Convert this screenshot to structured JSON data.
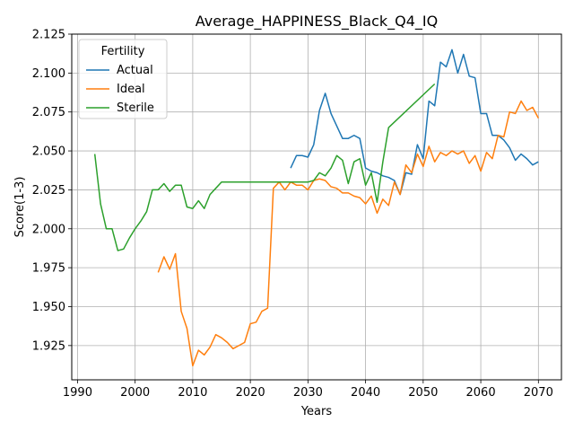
{
  "chart_data": {
    "type": "line",
    "title": "Average_HAPPINESS_Black_Q4_IQ",
    "xlabel": "Years",
    "ylabel": "Score(1-3)",
    "xlim": [
      1989,
      2074
    ],
    "ylim": [
      1.903,
      2.125
    ],
    "xticks": [
      1990,
      2000,
      2010,
      2020,
      2030,
      2040,
      2050,
      2060,
      2070
    ],
    "yticks": [
      1.925,
      1.95,
      1.975,
      2.0,
      2.025,
      2.05,
      2.075,
      2.1,
      2.125
    ],
    "grid": true,
    "legend": {
      "title": "Fertility",
      "placement": "top-left",
      "entries": [
        "Actual",
        "Ideal",
        "Sterile"
      ]
    },
    "series": [
      {
        "name": "Actual",
        "color": "#1f77b4",
        "points": [
          [
            2027,
            2.039
          ],
          [
            2028,
            2.047
          ],
          [
            2029,
            2.047
          ],
          [
            2030,
            2.046
          ],
          [
            2031,
            2.054
          ],
          [
            2032,
            2.076
          ],
          [
            2033,
            2.087
          ],
          [
            2034,
            2.074
          ],
          [
            2035,
            2.066
          ],
          [
            2036,
            2.058
          ],
          [
            2037,
            2.058
          ],
          [
            2038,
            2.06
          ],
          [
            2039,
            2.058
          ],
          [
            2040,
            2.039
          ],
          [
            2041,
            2.037
          ],
          [
            2042,
            2.036
          ],
          [
            2043,
            2.034
          ],
          [
            2044,
            2.033
          ],
          [
            2045,
            2.031
          ],
          [
            2046,
            2.022
          ],
          [
            2047,
            2.036
          ],
          [
            2048,
            2.035
          ],
          [
            2049,
            2.054
          ],
          [
            2050,
            2.045
          ],
          [
            2051,
            2.082
          ],
          [
            2052,
            2.079
          ],
          [
            2053,
            2.107
          ],
          [
            2054,
            2.104
          ],
          [
            2055,
            2.115
          ],
          [
            2056,
            2.1
          ],
          [
            2057,
            2.112
          ],
          [
            2058,
            2.098
          ],
          [
            2059,
            2.097
          ],
          [
            2060,
            2.074
          ],
          [
            2061,
            2.074
          ],
          [
            2062,
            2.06
          ],
          [
            2063,
            2.06
          ],
          [
            2064,
            2.057
          ],
          [
            2065,
            2.052
          ],
          [
            2066,
            2.044
          ],
          [
            2067,
            2.048
          ],
          [
            2068,
            2.045
          ],
          [
            2069,
            2.041
          ],
          [
            2070,
            2.043
          ]
        ]
      },
      {
        "name": "Ideal",
        "color": "#ff7f0e",
        "points": [
          [
            2004,
            1.972
          ],
          [
            2005,
            1.982
          ],
          [
            2006,
            1.974
          ],
          [
            2007,
            1.984
          ],
          [
            2008,
            1.947
          ],
          [
            2009,
            1.936
          ],
          [
            2010,
            1.912
          ],
          [
            2011,
            1.922
          ],
          [
            2012,
            1.919
          ],
          [
            2013,
            1.924
          ],
          [
            2014,
            1.932
          ],
          [
            2015,
            1.93
          ],
          [
            2016,
            1.927
          ],
          [
            2017,
            1.923
          ],
          [
            2018,
            1.925
          ],
          [
            2019,
            1.927
          ],
          [
            2020,
            1.939
          ],
          [
            2021,
            1.94
          ],
          [
            2022,
            1.947
          ],
          [
            2023,
            1.949
          ],
          [
            2024,
            2.026
          ],
          [
            2025,
            2.03
          ],
          [
            2026,
            2.025
          ],
          [
            2027,
            2.03
          ],
          [
            2028,
            2.028
          ],
          [
            2029,
            2.028
          ],
          [
            2030,
            2.025
          ],
          [
            2031,
            2.031
          ],
          [
            2032,
            2.032
          ],
          [
            2033,
            2.031
          ],
          [
            2034,
            2.027
          ],
          [
            2035,
            2.026
          ],
          [
            2036,
            2.023
          ],
          [
            2037,
            2.023
          ],
          [
            2038,
            2.021
          ],
          [
            2039,
            2.02
          ],
          [
            2040,
            2.016
          ],
          [
            2041,
            2.021
          ],
          [
            2042,
            2.01
          ],
          [
            2043,
            2.019
          ],
          [
            2044,
            2.015
          ],
          [
            2045,
            2.03
          ],
          [
            2046,
            2.022
          ],
          [
            2047,
            2.041
          ],
          [
            2048,
            2.036
          ],
          [
            2049,
            2.048
          ],
          [
            2050,
            2.04
          ],
          [
            2051,
            2.053
          ],
          [
            2052,
            2.043
          ],
          [
            2053,
            2.049
          ],
          [
            2054,
            2.047
          ],
          [
            2055,
            2.05
          ],
          [
            2056,
            2.048
          ],
          [
            2057,
            2.05
          ],
          [
            2058,
            2.042
          ],
          [
            2059,
            2.047
          ],
          [
            2060,
            2.037
          ],
          [
            2061,
            2.049
          ],
          [
            2062,
            2.045
          ],
          [
            2063,
            2.06
          ],
          [
            2064,
            2.059
          ],
          [
            2065,
            2.075
          ],
          [
            2066,
            2.074
          ],
          [
            2067,
            2.082
          ],
          [
            2068,
            2.076
          ],
          [
            2069,
            2.078
          ],
          [
            2070,
            2.071
          ]
        ]
      },
      {
        "name": "Sterile",
        "color": "#2ca02c",
        "points": [
          [
            1993,
            2.048
          ],
          [
            1994,
            2.016
          ],
          [
            1995,
            2.0
          ],
          [
            1996,
            2.0
          ],
          [
            1997,
            1.986
          ],
          [
            1998,
            1.987
          ],
          [
            1999,
            1.994
          ],
          [
            2000,
            2.0
          ],
          [
            2001,
            2.005
          ],
          [
            2002,
            2.011
          ],
          [
            2003,
            2.025
          ],
          [
            2004,
            2.025
          ],
          [
            2005,
            2.029
          ],
          [
            2006,
            2.024
          ],
          [
            2007,
            2.028
          ],
          [
            2008,
            2.028
          ],
          [
            2009,
            2.014
          ],
          [
            2010,
            2.013
          ],
          [
            2011,
            2.018
          ],
          [
            2012,
            2.013
          ],
          [
            2013,
            2.022
          ],
          [
            2014,
            2.026
          ],
          [
            2015,
            2.03
          ],
          [
            2020,
            2.03
          ],
          [
            2025,
            2.03
          ],
          [
            2030,
            2.03
          ],
          [
            2031,
            2.031
          ],
          [
            2032,
            2.036
          ],
          [
            2033,
            2.034
          ],
          [
            2034,
            2.039
          ],
          [
            2035,
            2.047
          ],
          [
            2036,
            2.044
          ],
          [
            2037,
            2.029
          ],
          [
            2038,
            2.043
          ],
          [
            2039,
            2.045
          ],
          [
            2040,
            2.028
          ],
          [
            2041,
            2.036
          ],
          [
            2042,
            2.017
          ],
          [
            2043,
            2.043
          ],
          [
            2044,
            2.065
          ],
          [
            2052,
            2.093
          ]
        ]
      }
    ]
  }
}
